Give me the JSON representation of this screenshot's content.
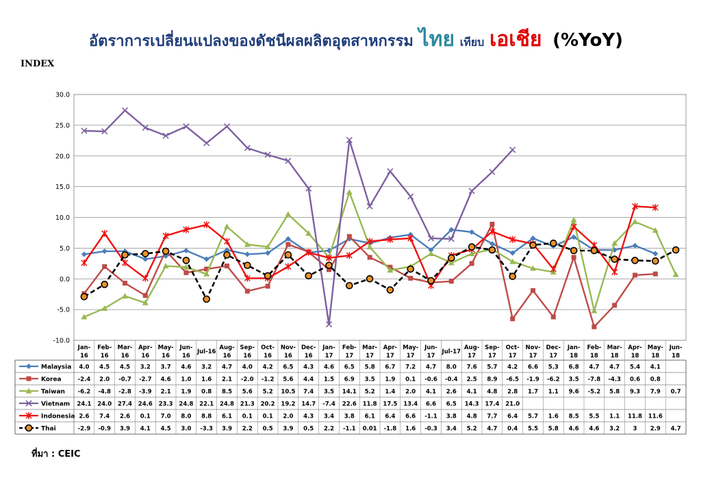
{
  "title": {
    "part1": "อัตราการเปลี่ยนแปลงของดัชนีผลผลิตอุตสาหกรรม",
    "thai": "ไทย",
    "compare": "เทียบ",
    "asia": "เอเชีย",
    "yoy": "(%YoY)"
  },
  "y_label": "INDEX",
  "source": "ที่มา : CEIC",
  "chart_data": {
    "type": "line",
    "ylim": [
      -10,
      30
    ],
    "yticks": [
      "30.0",
      "25.0",
      "20.0",
      "15.0",
      "10.0",
      "5.0",
      "0.0",
      "-5.0",
      "-10.0"
    ],
    "grid": true,
    "categories": [
      [
        "Jan-",
        "16"
      ],
      [
        "Feb-",
        "16"
      ],
      [
        "Mar-",
        "16"
      ],
      [
        "Apr-",
        "16"
      ],
      [
        "May-",
        "16"
      ],
      [
        "Jun-",
        "16"
      ],
      [
        "Jul-16"
      ],
      [
        "Aug-",
        "16"
      ],
      [
        "Sep-",
        "16"
      ],
      [
        "Oct-",
        "16"
      ],
      [
        "Nov-",
        "16"
      ],
      [
        "Dec-",
        "16"
      ],
      [
        "Jan-",
        "17"
      ],
      [
        "Feb-",
        "17"
      ],
      [
        "Mar-",
        "17"
      ],
      [
        "Apr-",
        "17"
      ],
      [
        "May-",
        "17"
      ],
      [
        "Jun-",
        "17"
      ],
      [
        "Jul-17"
      ],
      [
        "Aug-",
        "17"
      ],
      [
        "Sep-",
        "17"
      ],
      [
        "Oct-",
        "17"
      ],
      [
        "Nov-",
        "17"
      ],
      [
        "Dec-",
        "17"
      ],
      [
        "Jan-",
        "18"
      ],
      [
        "Feb-",
        "18"
      ],
      [
        "Mar-",
        "18"
      ],
      [
        "Apr-",
        "18"
      ],
      [
        "May-",
        "18"
      ],
      [
        "Jun-",
        "18"
      ]
    ],
    "series": [
      {
        "name": "Malaysia",
        "color": "#4a7ebb",
        "marker": "diamond",
        "values": [
          4.0,
          4.5,
          4.5,
          3.2,
          3.7,
          4.6,
          3.2,
          4.7,
          4.0,
          4.2,
          6.5,
          4.3,
          4.6,
          6.5,
          5.8,
          6.7,
          7.2,
          4.7,
          8.0,
          7.6,
          5.7,
          4.2,
          6.6,
          5.3,
          6.8,
          4.7,
          4.7,
          5.4,
          4.1,
          null
        ],
        "labels": [
          "4.0",
          "4.5",
          "4.5",
          "3.2",
          "3.7",
          "4.6",
          "3.2",
          "4.7",
          "4.0",
          "4.2",
          "6.5",
          "4.3",
          "4.6",
          "6.5",
          "5.8",
          "6.7",
          "7.2",
          "4.7",
          "8.0",
          "7.6",
          "5.7",
          "4.2",
          "6.6",
          "5.3",
          "6.8",
          "4.7",
          "4.7",
          "5.4",
          "4.1",
          ""
        ]
      },
      {
        "name": "Korea",
        "color": "#be4b48",
        "marker": "square",
        "values": [
          -2.4,
          2.0,
          -0.7,
          -2.7,
          4.6,
          1.0,
          1.6,
          2.1,
          -2.0,
          -1.2,
          5.6,
          4.4,
          1.5,
          6.9,
          3.5,
          1.9,
          0.1,
          -0.6,
          -0.4,
          2.5,
          8.9,
          -6.5,
          -1.9,
          -6.2,
          3.5,
          -7.8,
          -4.3,
          0.6,
          0.8,
          null
        ],
        "labels": [
          "-2.4",
          "2.0",
          "-0.7",
          "-2.7",
          "4.6",
          "1.0",
          "1.6",
          "2.1",
          "-2.0",
          "-1.2",
          "5.6",
          "4.4",
          "1.5",
          "6.9",
          "3.5",
          "1.9",
          "0.1",
          "-0.6",
          "-0.4",
          "2.5",
          "8.9",
          "-6.5",
          "-1.9",
          "-6.2",
          "3.5",
          "-7.8",
          "-4.3",
          "0.6",
          "0.8",
          ""
        ]
      },
      {
        "name": "Taiwan",
        "color": "#98b954",
        "marker": "triangle",
        "values": [
          -6.2,
          -4.8,
          -2.8,
          -3.9,
          2.1,
          1.9,
          0.8,
          8.5,
          5.6,
          5.2,
          10.5,
          7.4,
          3.5,
          14.1,
          5.2,
          1.4,
          2.0,
          4.1,
          2.6,
          4.1,
          4.8,
          2.8,
          1.7,
          1.1,
          9.6,
          -5.2,
          5.8,
          9.3,
          7.9,
          0.7
        ],
        "labels": [
          "-6.2",
          "-4.8",
          "-2.8",
          "-3.9",
          "2.1",
          "1.9",
          "0.8",
          "8.5",
          "5.6",
          "5.2",
          "10.5",
          "7.4",
          "3.5",
          "14.1",
          "5.2",
          "1.4",
          "2.0",
          "4.1",
          "2.6",
          "4.1",
          "4.8",
          "2.8",
          "1.7",
          "1.1",
          "9.6",
          "-5.2",
          "5.8",
          "9.3",
          "7.9",
          "0.7"
        ]
      },
      {
        "name": "Vietnam",
        "color": "#7d60a0",
        "marker": "x",
        "values": [
          24.1,
          24.0,
          27.4,
          24.6,
          23.3,
          24.8,
          22.1,
          24.8,
          21.3,
          20.2,
          19.2,
          14.7,
          -7.4,
          22.6,
          11.8,
          17.5,
          13.4,
          6.6,
          6.5,
          14.3,
          17.4,
          21.0,
          null,
          null,
          null,
          null,
          null,
          null,
          null,
          null
        ],
        "labels": [
          "24.1",
          "24.0",
          "27.4",
          "24.6",
          "23.3",
          "24.8",
          "22.1",
          "24.8",
          "21.3",
          "20.2",
          "19.2",
          "14.7",
          "-7.4",
          "22.6",
          "11.8",
          "17.5",
          "13.4",
          "6.6",
          "6.5",
          "14.3",
          "17.4",
          "21.0",
          "",
          "",
          "",
          "",
          "",
          "",
          "",
          ""
        ]
      },
      {
        "name": "Indonesia",
        "color": "#ee1111",
        "marker": "star",
        "values": [
          2.6,
          7.4,
          2.6,
          0.1,
          7.0,
          8.0,
          8.8,
          6.1,
          0.1,
          0.1,
          2.0,
          4.3,
          3.4,
          3.8,
          6.1,
          6.4,
          6.6,
          -1.1,
          3.8,
          4.8,
          7.7,
          6.4,
          5.7,
          1.6,
          8.5,
          5.5,
          1.1,
          11.8,
          11.6,
          null
        ],
        "labels": [
          "2.6",
          "7.4",
          "2.6",
          "0.1",
          "7.0",
          "8.0",
          "8.8",
          "6.1",
          "0.1",
          "0.1",
          "2.0",
          "4.3",
          "3.4",
          "3.8",
          "6.1",
          "6.4",
          "6.6",
          "-1.1",
          "3.8",
          "4.8",
          "7.7",
          "6.4",
          "5.7",
          "1.6",
          "8.5",
          "5.5",
          "1.1",
          "11.8",
          "11.6",
          ""
        ]
      },
      {
        "name": "Thai",
        "color": "#000000",
        "marker": "circle",
        "dashed": true,
        "values": [
          -2.9,
          -0.9,
          3.9,
          4.1,
          4.5,
          3.0,
          -3.3,
          3.9,
          2.2,
          0.5,
          3.9,
          0.5,
          2.2,
          -1.1,
          0.01,
          -1.8,
          1.6,
          -0.3,
          3.4,
          5.2,
          4.7,
          0.4,
          5.5,
          5.8,
          4.6,
          4.6,
          3.2,
          3,
          2.9,
          4.7
        ],
        "labels": [
          "-2.9",
          "-0.9",
          "3.9",
          "4.1",
          "4.5",
          "3.0",
          "-3.3",
          "3.9",
          "2.2",
          "0.5",
          "3.9",
          "0.5",
          "2.2",
          "-1.1",
          "0.01",
          "-1.8",
          "1.6",
          "-0.3",
          "3.4",
          "5.2",
          "4.7",
          "0.4",
          "5.5",
          "5.8",
          "4.6",
          "4.6",
          "3.2",
          "3",
          "2.9",
          "4.7"
        ]
      }
    ]
  }
}
